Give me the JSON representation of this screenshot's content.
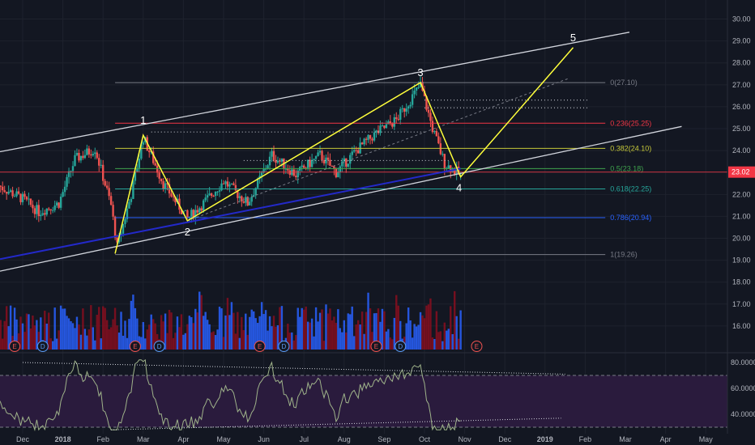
{
  "chart_data": {
    "type": "candlestick",
    "price_axis": {
      "ylim": [
        15,
        30.5
      ],
      "ticks": [
        "16.00",
        "17.00",
        "18.00",
        "19.00",
        "20.00",
        "21.00",
        "22.00",
        "23.00",
        "24.00",
        "25.00",
        "26.00",
        "27.00",
        "28.00",
        "29.00",
        "30.00"
      ],
      "current_price_label": "23.02",
      "current_price": 23.02
    },
    "time_axis": {
      "tick_labels": [
        "Dec",
        "2018",
        "Feb",
        "Mar",
        "Apr",
        "May",
        "Jun",
        "Jul",
        "Aug",
        "Sep",
        "Oct",
        "Nov",
        "Dec",
        "2019",
        "Feb",
        "Mar",
        "Apr",
        "May"
      ]
    },
    "elliott_wave": {
      "labels": [
        "1",
        "2",
        "3",
        "4",
        "5"
      ],
      "points": [
        {
          "label": "",
          "date_index": 2.3,
          "price": 19.3
        },
        {
          "label": "1",
          "date_index": 3.0,
          "price": 24.7
        },
        {
          "label": "2",
          "date_index": 4.1,
          "price": 20.8
        },
        {
          "label": "3",
          "date_index": 9.9,
          "price": 27.1
        },
        {
          "label": "4",
          "date_index": 10.9,
          "price": 22.8
        },
        {
          "label": "5",
          "date_index": 13.7,
          "price": 28.7
        }
      ]
    },
    "fibonacci_levels": [
      {
        "label": "0(27.10)",
        "value": 27.1,
        "color": "#787b86"
      },
      {
        "label": "0.236(25.25)",
        "value": 25.25,
        "color": "#f23645"
      },
      {
        "label": "0.382(24.10)",
        "value": 24.1,
        "color": "#c6c93a"
      },
      {
        "label": "0.5(23.18)",
        "value": 23.18,
        "color": "#3fa34d"
      },
      {
        "label": "0.618(22.25)",
        "value": 22.25,
        "color": "#26a69a"
      },
      {
        "label": "0.786(20.94)",
        "value": 20.94,
        "color": "#2962ff"
      },
      {
        "label": "1(19.26)",
        "value": 19.26,
        "color": "#787b86"
      }
    ],
    "event_markers": {
      "row": [
        "E",
        "D",
        "E",
        "D",
        "E",
        "D",
        "E",
        "D",
        "E"
      ],
      "date_index": [
        -0.2,
        0.5,
        2.8,
        3.4,
        5.9,
        6.5,
        8.8,
        9.4,
        11.3
      ]
    },
    "rsi_panel": {
      "ticks": [
        "40.0000",
        "60.0000",
        "80.0000"
      ],
      "ylim": [
        25,
        85
      ],
      "upper_band": 70,
      "lower_band": 30
    },
    "colors": {
      "background": "#131722",
      "up_candle": "#26a69a",
      "down_candle": "#ef5350",
      "channel": "#d1d4dc",
      "wave": "#ffff3b",
      "blue_trend": "#2329c9",
      "rsi_fill": "#2a1b3d",
      "rsi_line": "#9fb38a",
      "volume_up": "#2962ff",
      "volume_down": "#880e1f"
    }
  }
}
